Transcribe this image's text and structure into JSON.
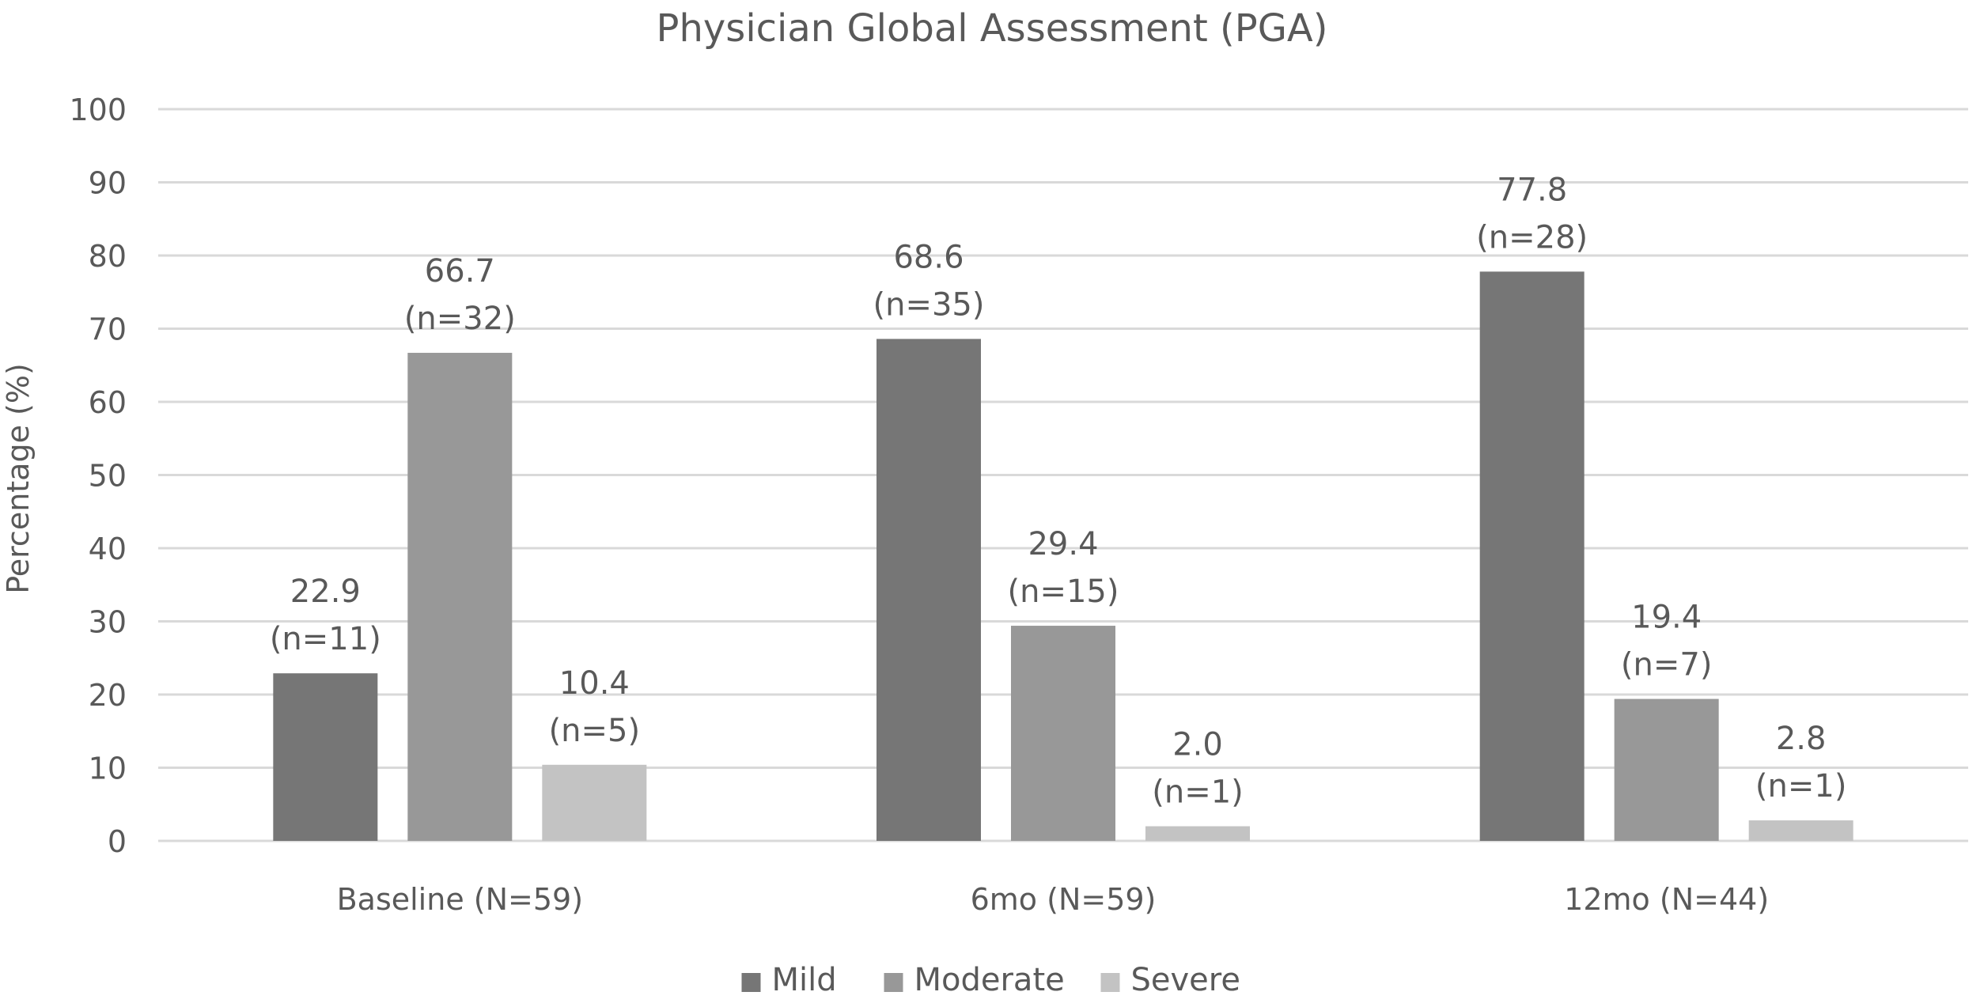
{
  "chart_data": {
    "type": "bar",
    "title": "Physician Global Assessment (PGA)",
    "ylabel": "Percentage (%)",
    "xlabel": "",
    "ylim": [
      0,
      100
    ],
    "ytick_step": 10,
    "grid": true,
    "legend_position": "bottom",
    "categories": [
      "Baseline (N=59)",
      "6mo (N=59)",
      "12mo (N=44)"
    ],
    "series": [
      {
        "name": "Mild",
        "color": "#767676",
        "values": [
          22.9,
          68.6,
          77.8
        ],
        "labels": [
          "22.9",
          "68.6",
          "77.8"
        ],
        "counts": [
          "(n=11)",
          "(n=35)",
          "(n=28)"
        ]
      },
      {
        "name": "Moderate",
        "color": "#989898",
        "values": [
          66.7,
          29.4,
          19.4
        ],
        "labels": [
          "66.7",
          "29.4",
          "19.4"
        ],
        "counts": [
          "(n=32)",
          "(n=15)",
          "(n=7)"
        ]
      },
      {
        "name": "Severe",
        "color": "#c3c3c3",
        "values": [
          10.4,
          2.0,
          2.8
        ],
        "labels": [
          "10.4",
          "2.0",
          "2.8"
        ],
        "counts": [
          "(n=5)",
          "(n=1)",
          "(n=1)"
        ]
      }
    ]
  }
}
